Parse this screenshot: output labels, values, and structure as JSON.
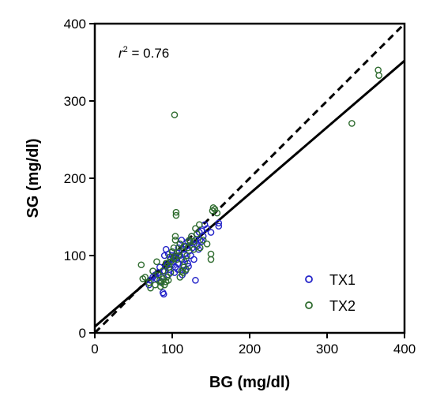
{
  "chart_data": {
    "type": "scatter",
    "title": "",
    "xlabel": "BG (mg/dl)",
    "ylabel": "SG (mg/dl)",
    "xlim": [
      0,
      400
    ],
    "ylim": [
      0,
      400
    ],
    "xticks": [
      "0",
      "100",
      "200",
      "300",
      "400"
    ],
    "yticks": [
      "0",
      "100",
      "200",
      "300",
      "400"
    ],
    "grid": false,
    "legend_position": "bottom-right",
    "annotation": {
      "r_symbol": "r",
      "r_exp": "2",
      "text": " = 0.76"
    },
    "identity_line": {
      "style": "dashed",
      "slope": 1,
      "intercept": 0,
      "color": "#000000"
    },
    "regression_line": {
      "style": "solid",
      "slope": 0.86,
      "intercept": 8,
      "color": "#000000"
    },
    "series": [
      {
        "name": "TX1",
        "color": "#2323c8",
        "points": [
          [
            70,
            62
          ],
          [
            72,
            68
          ],
          [
            75,
            72
          ],
          [
            78,
            75
          ],
          [
            80,
            70
          ],
          [
            82,
            78
          ],
          [
            84,
            85
          ],
          [
            85,
            66
          ],
          [
            86,
            72
          ],
          [
            88,
            52
          ],
          [
            89,
            50
          ],
          [
            90,
            80
          ],
          [
            92,
            86
          ],
          [
            94,
            90
          ],
          [
            95,
            75
          ],
          [
            96,
            82
          ],
          [
            98,
            95
          ],
          [
            100,
            88
          ],
          [
            100,
            100
          ],
          [
            102,
            92
          ],
          [
            104,
            85
          ],
          [
            105,
            98
          ],
          [
            106,
            104
          ],
          [
            108,
            90
          ],
          [
            108,
            110
          ],
          [
            110,
            100
          ],
          [
            110,
            115
          ],
          [
            112,
            95
          ],
          [
            112,
            120
          ],
          [
            114,
            88
          ],
          [
            115,
            108
          ],
          [
            116,
            102
          ],
          [
            118,
            112
          ],
          [
            118,
            96
          ],
          [
            120,
            118
          ],
          [
            120,
            90
          ],
          [
            122,
            106
          ],
          [
            124,
            100
          ],
          [
            125,
            125
          ],
          [
            126,
            110
          ],
          [
            128,
            115
          ],
          [
            128,
            95
          ],
          [
            130,
            68
          ],
          [
            130,
            120
          ],
          [
            132,
            112
          ],
          [
            134,
            108
          ],
          [
            135,
            130
          ],
          [
            136,
            120
          ],
          [
            138,
            132
          ],
          [
            138,
            118
          ],
          [
            140,
            125
          ],
          [
            142,
            140
          ],
          [
            145,
            135
          ],
          [
            150,
            130
          ],
          [
            160,
            138
          ],
          [
            160,
            142
          ],
          [
            100,
            105
          ],
          [
            103,
            78
          ],
          [
            107,
            82
          ],
          [
            113,
            75
          ],
          [
            117,
            80
          ],
          [
            121,
            86
          ],
          [
            90,
            100
          ],
          [
            92,
            108
          ],
          [
            95,
            102
          ]
        ]
      },
      {
        "name": "TX2",
        "color": "#2e6b2e",
        "points": [
          [
            60,
            88
          ],
          [
            62,
            70
          ],
          [
            65,
            72
          ],
          [
            70,
            65
          ],
          [
            72,
            58
          ],
          [
            75,
            80
          ],
          [
            78,
            62
          ],
          [
            80,
            92
          ],
          [
            82,
            75
          ],
          [
            84,
            68
          ],
          [
            85,
            60
          ],
          [
            86,
            65
          ],
          [
            88,
            70
          ],
          [
            90,
            62
          ],
          [
            92,
            66
          ],
          [
            93,
            72
          ],
          [
            95,
            68
          ],
          [
            96,
            85
          ],
          [
            98,
            78
          ],
          [
            100,
            105
          ],
          [
            102,
            110
          ],
          [
            104,
            120
          ],
          [
            104,
            125
          ],
          [
            105,
            152
          ],
          [
            105,
            156
          ],
          [
            106,
            95
          ],
          [
            108,
            100
          ],
          [
            110,
            115
          ],
          [
            112,
            80
          ],
          [
            114,
            78
          ],
          [
            115,
            85
          ],
          [
            116,
            92
          ],
          [
            118,
            82
          ],
          [
            120,
            110
          ],
          [
            122,
            120
          ],
          [
            125,
            125
          ],
          [
            128,
            118
          ],
          [
            130,
            135
          ],
          [
            132,
            128
          ],
          [
            135,
            140
          ],
          [
            136,
            110
          ],
          [
            140,
            120
          ],
          [
            145,
            115
          ],
          [
            150,
            95
          ],
          [
            150,
            102
          ],
          [
            152,
            158
          ],
          [
            153,
            162
          ],
          [
            155,
            160
          ],
          [
            158,
            155
          ],
          [
            103,
            282
          ],
          [
            332,
            271
          ],
          [
            366,
            340
          ],
          [
            367,
            333
          ],
          [
            95,
            88
          ],
          [
            98,
            92
          ],
          [
            102,
            96
          ],
          [
            109,
            105
          ],
          [
            115,
            112
          ],
          [
            119,
            100
          ],
          [
            123,
            118
          ],
          [
            128,
            108
          ],
          [
            88,
            80
          ],
          [
            92,
            90
          ],
          [
            97,
            98
          ],
          [
            110,
            72
          ]
        ]
      }
    ]
  }
}
